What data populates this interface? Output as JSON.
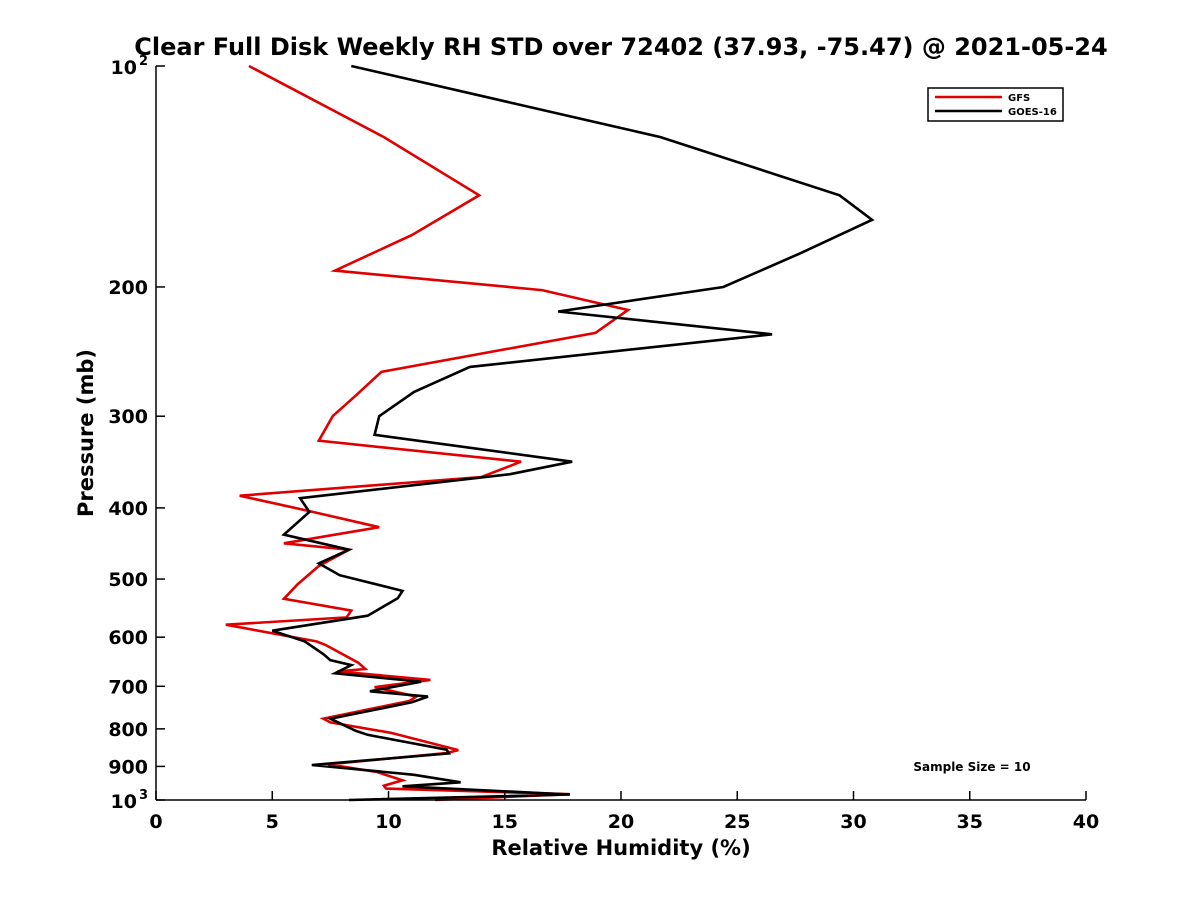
{
  "chart_data": {
    "type": "line",
    "title": "Clear Full Disk Weekly RH STD over 72402 (37.93, -75.47) @ 2021-05-24",
    "xlabel": "Relative Humidity (%)",
    "ylabel": "Pressure (mb)",
    "xlim": [
      0,
      40
    ],
    "ylim": [
      100,
      1000
    ],
    "yscale": "log",
    "y_reversed": true,
    "grid": false,
    "x_ticks": [
      {
        "value": 0,
        "label": "0"
      },
      {
        "value": 5,
        "label": "5"
      },
      {
        "value": 10,
        "label": "10"
      },
      {
        "value": 15,
        "label": "15"
      },
      {
        "value": 20,
        "label": "20"
      },
      {
        "value": 25,
        "label": "25"
      },
      {
        "value": 30,
        "label": "30"
      },
      {
        "value": 35,
        "label": "35"
      },
      {
        "value": 40,
        "label": "40"
      }
    ],
    "y_ticks": [
      {
        "value": 100,
        "label": "10",
        "sup": "2"
      },
      {
        "value": 200,
        "label": "200"
      },
      {
        "value": 300,
        "label": "300"
      },
      {
        "value": 400,
        "label": "400"
      },
      {
        "value": 500,
        "label": "500"
      },
      {
        "value": 600,
        "label": "600"
      },
      {
        "value": 700,
        "label": "700"
      },
      {
        "value": 800,
        "label": "800"
      },
      {
        "value": 900,
        "label": "900"
      },
      {
        "value": 1000,
        "label": "10",
        "sup": "3"
      }
    ],
    "legend_position": "top-right",
    "series": [
      {
        "name": "GFS",
        "color": "#e00000",
        "points": [
          [
            4.0,
            100
          ],
          [
            9.8,
            125
          ],
          [
            13.9,
            150
          ],
          [
            11.0,
            170
          ],
          [
            7.7,
            190
          ],
          [
            16.6,
            202
          ],
          [
            20.3,
            215
          ],
          [
            18.9,
            231
          ],
          [
            9.7,
            261
          ],
          [
            8.6,
            281
          ],
          [
            7.6,
            300
          ],
          [
            7.0,
            324
          ],
          [
            15.7,
            346
          ],
          [
            14.0,
            363
          ],
          [
            3.6,
            385
          ],
          [
            6.6,
            404
          ],
          [
            9.6,
            425
          ],
          [
            5.5,
            447
          ],
          [
            8.3,
            456
          ],
          [
            7.0,
            480
          ],
          [
            6.1,
            508
          ],
          [
            5.5,
            532
          ],
          [
            8.4,
            552
          ],
          [
            8.2,
            564
          ],
          [
            3.0,
            577
          ],
          [
            6.9,
            608
          ],
          [
            7.3,
            615
          ],
          [
            8.7,
            650
          ],
          [
            9.0,
            663
          ],
          [
            7.8,
            668
          ],
          [
            11.8,
            686
          ],
          [
            9.4,
            702
          ],
          [
            11.2,
            723
          ],
          [
            10.9,
            733
          ],
          [
            7.2,
            775
          ],
          [
            7.5,
            784
          ],
          [
            10.1,
            810
          ],
          [
            13.0,
            855
          ],
          [
            12.5,
            863
          ],
          [
            7.4,
            894
          ],
          [
            9.5,
            916
          ],
          [
            10.6,
            940
          ],
          [
            9.8,
            956
          ],
          [
            9.9,
            965
          ],
          [
            17.8,
            982
          ],
          [
            12.0,
            1000
          ]
        ]
      },
      {
        "name": "GOES-16",
        "color": "#000000",
        "points": [
          [
            8.4,
            100
          ],
          [
            21.7,
            125
          ],
          [
            29.4,
            150
          ],
          [
            30.8,
            162
          ],
          [
            27.7,
            180
          ],
          [
            24.4,
            200
          ],
          [
            17.3,
            216
          ],
          [
            26.5,
            232
          ],
          [
            13.5,
            257
          ],
          [
            11.1,
            278
          ],
          [
            9.6,
            300
          ],
          [
            9.4,
            318
          ],
          [
            17.9,
            346
          ],
          [
            15.2,
            360
          ],
          [
            6.2,
            388
          ],
          [
            6.6,
            405
          ],
          [
            5.5,
            435
          ],
          [
            8.3,
            456
          ],
          [
            7.0,
            476
          ],
          [
            7.9,
            494
          ],
          [
            10.6,
            519
          ],
          [
            10.4,
            531
          ],
          [
            9.1,
            561
          ],
          [
            5.0,
            588
          ],
          [
            6.4,
            608
          ],
          [
            7.2,
            633
          ],
          [
            7.5,
            645
          ],
          [
            8.4,
            655
          ],
          [
            7.7,
            672
          ],
          [
            11.4,
            690
          ],
          [
            9.2,
            711
          ],
          [
            11.7,
            723
          ],
          [
            11.0,
            736
          ],
          [
            7.5,
            775
          ],
          [
            8.6,
            805
          ],
          [
            9.1,
            815
          ],
          [
            12.5,
            854
          ],
          [
            12.6,
            864
          ],
          [
            6.7,
            896
          ],
          [
            11.1,
            924
          ],
          [
            13.1,
            946
          ],
          [
            10.6,
            958
          ],
          [
            17.8,
            983
          ],
          [
            8.3,
            1000
          ]
        ]
      }
    ],
    "annotations": [
      {
        "text": "Sample Size = 10",
        "x": 35,
        "y": 900
      }
    ]
  }
}
